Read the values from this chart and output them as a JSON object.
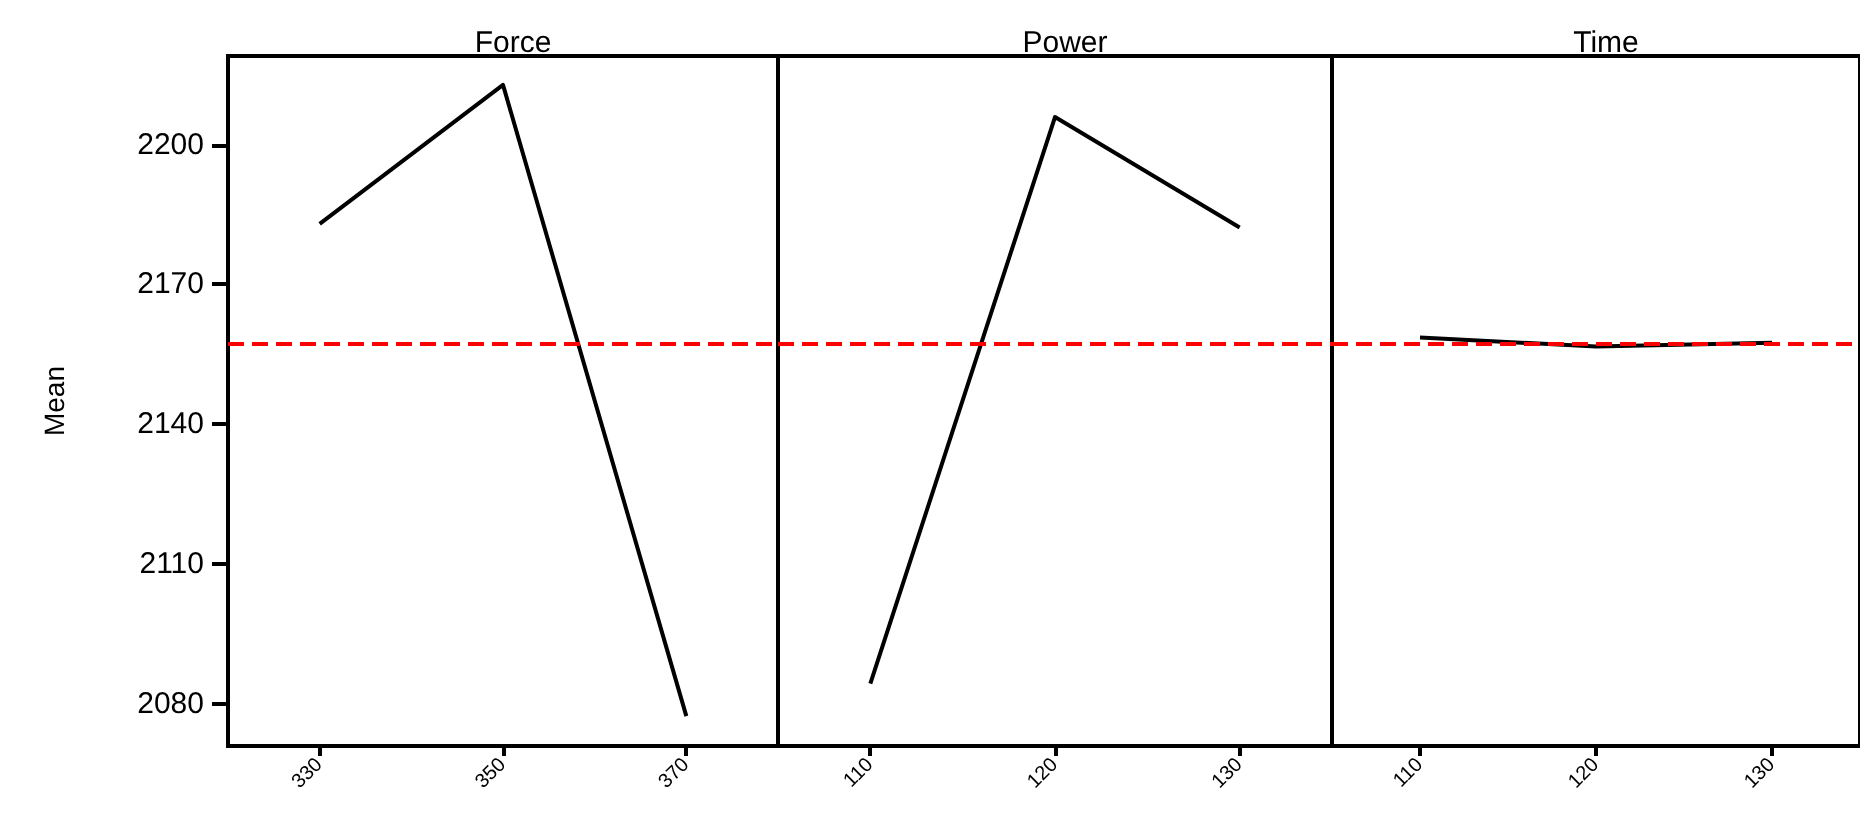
{
  "chart_data": [
    {
      "type": "line",
      "title": "Force",
      "ylabel": "Mean",
      "categories": [
        "330",
        "350",
        "370"
      ],
      "series": [
        {
          "color": "#000000",
          "values": [
            2183,
            2212.8,
            2077.4
          ]
        }
      ],
      "ylim": [
        2071,
        2219
      ],
      "yticks": [
        2080,
        2110,
        2140,
        2170,
        2200
      ],
      "ref_lines": [
        {
          "axis": "y",
          "value": 2157.3,
          "color": "#ff0000",
          "line_style": "dashed"
        }
      ],
      "marker": "none",
      "grid": false
    },
    {
      "type": "line",
      "title": "Power",
      "categories": [
        "110",
        "120",
        "130"
      ],
      "series": [
        {
          "color": "#000000",
          "values": [
            2084.4,
            2205.9,
            2182.2
          ]
        }
      ],
      "ylim": [
        2071,
        2219
      ],
      "yticks": [
        2080,
        2110,
        2140,
        2170,
        2200
      ],
      "ref_lines": [
        {
          "axis": "y",
          "value": 2157.3,
          "color": "#ff0000",
          "line_style": "dashed"
        }
      ],
      "marker": "none",
      "grid": false,
      "tick_labels": "x"
    },
    {
      "type": "line",
      "title": "Time",
      "categories": [
        "110",
        "120",
        "130"
      ],
      "series": [
        {
          "color": "#000000",
          "values": [
            2158.6,
            2156.7,
            2157.5
          ]
        }
      ],
      "ylim": [
        2071,
        2219
      ],
      "yticks": [
        2080,
        2110,
        2140,
        2170,
        2200
      ],
      "ref_lines": [
        {
          "axis": "y",
          "value": 2157.3,
          "color": "#ff0000",
          "line_style": "dashed"
        }
      ],
      "marker": "none",
      "grid": false,
      "tick_labels": "x"
    }
  ]
}
